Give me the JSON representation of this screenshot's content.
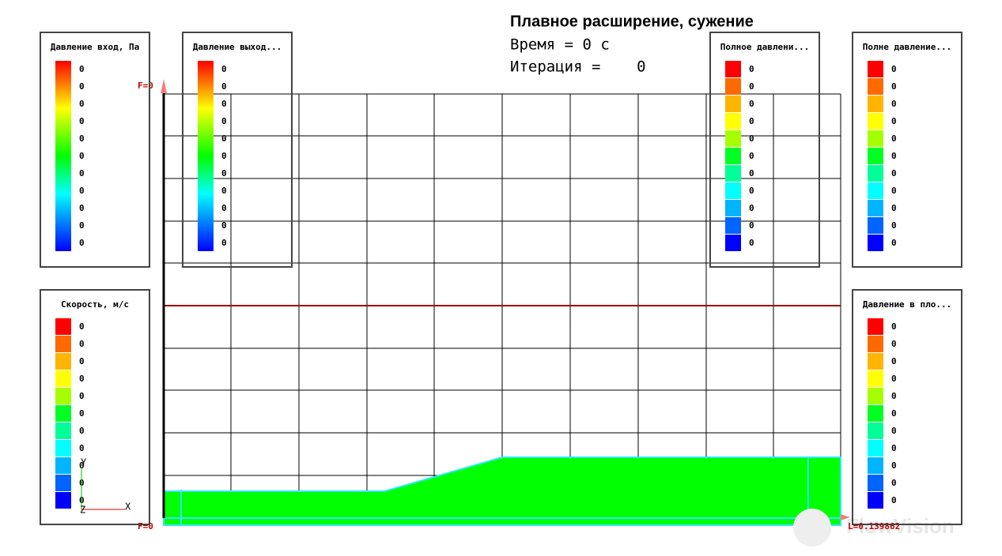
{
  "header": {
    "title": "Плавное расширение, сужение",
    "time_label": "Время = 0 с",
    "iteration_label": "Итерация =    0"
  },
  "legends": [
    {
      "title": "Давление вход, Па",
      "style": "gradient",
      "labels": [
        0,
        0,
        0,
        0,
        0,
        0,
        0,
        0,
        0,
        0,
        0
      ]
    },
    {
      "title": "Давление выход...",
      "style": "gradient",
      "labels": [
        0,
        0,
        0,
        0,
        0,
        0,
        0,
        0,
        0,
        0,
        0
      ]
    },
    {
      "title": "Полное давлени...",
      "style": "discrete",
      "labels": [
        0,
        0,
        0,
        0,
        0,
        0,
        0,
        0,
        0,
        0,
        0
      ]
    },
    {
      "title": "Полне давление...",
      "style": "discrete",
      "labels": [
        0,
        0,
        0,
        0,
        0,
        0,
        0,
        0,
        0,
        0,
        0
      ]
    },
    {
      "title": "Скорость, м/с",
      "style": "discrete",
      "labels": [
        0,
        0,
        0,
        0,
        0,
        0,
        0,
        0,
        0,
        0,
        0
      ]
    },
    {
      "title": "Давление в пло...",
      "style": "discrete",
      "labels": [
        0,
        0,
        0,
        0,
        0,
        0,
        0,
        0,
        0,
        0,
        0
      ]
    }
  ],
  "axis": {
    "top_label": "F=0",
    "bottom_label": "F=0",
    "length_label": "L=0.139862"
  },
  "triad": {
    "y": "Y",
    "z": "Z",
    "x": "X"
  },
  "watermark": "FlowVision"
}
